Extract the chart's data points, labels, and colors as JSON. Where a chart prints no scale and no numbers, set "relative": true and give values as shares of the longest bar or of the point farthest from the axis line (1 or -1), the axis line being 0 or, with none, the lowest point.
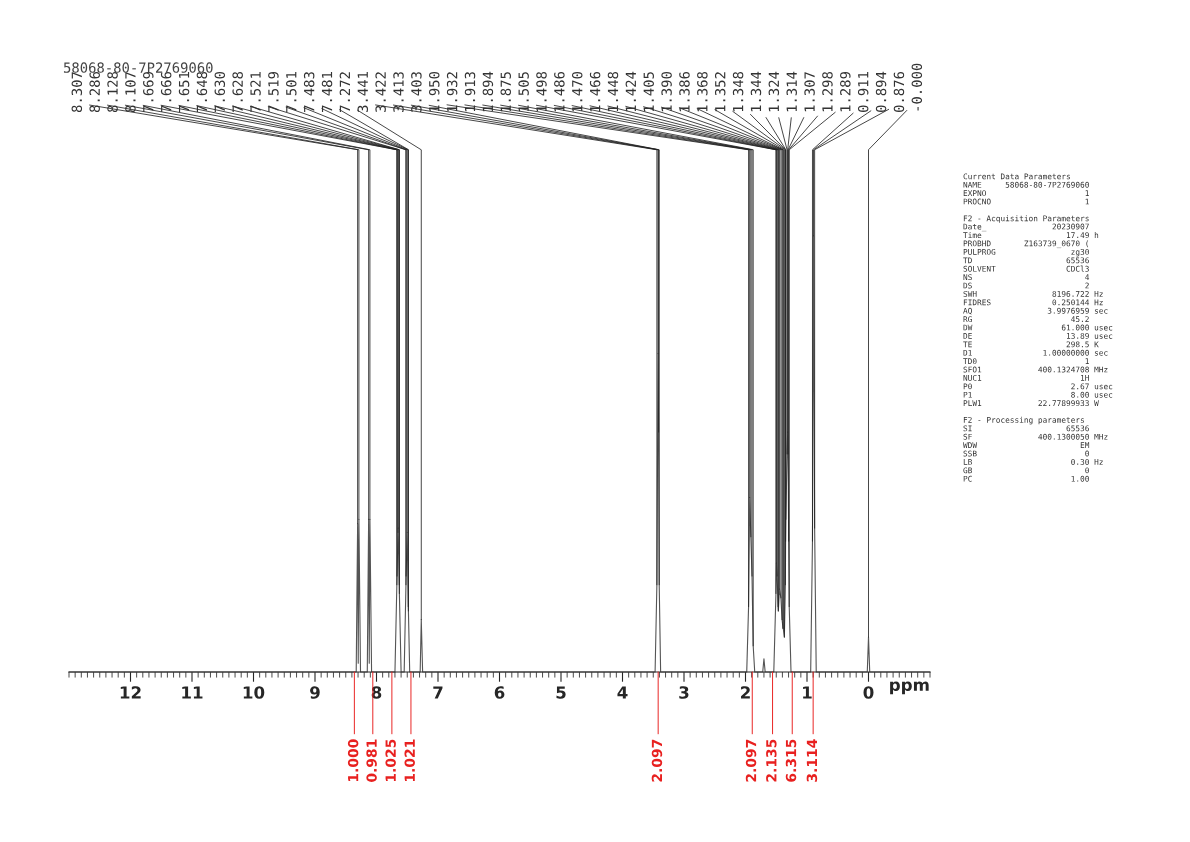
{
  "chart_data": {
    "type": "line",
    "title": "58068-80-7P2769060",
    "xlabel": "ppm",
    "relative": true,
    "xlim": [
      13,
      -1
    ],
    "xticks": [
      0,
      1,
      2,
      3,
      4,
      5,
      6,
      7,
      8,
      9,
      10,
      11,
      12
    ],
    "series": [
      {
        "color": "#555555",
        "x": [
          13,
          8.33,
          8.307,
          8.297,
          8.286,
          8.26,
          8.15,
          8.128,
          8.118,
          8.107,
          8.08,
          7.7,
          7.669,
          7.666,
          7.651,
          7.648,
          7.63,
          7.628,
          7.6,
          7.55,
          7.521,
          7.519,
          7.501,
          7.483,
          7.481,
          7.46,
          7.29,
          7.272,
          7.25,
          3.47,
          3.441,
          3.422,
          3.413,
          3.403,
          3.38,
          1.98,
          1.95,
          1.932,
          1.913,
          1.894,
          1.875,
          1.85,
          1.72,
          1.7,
          1.68,
          1.54,
          1.505,
          1.498,
          1.486,
          1.47,
          1.466,
          1.448,
          1.424,
          1.405,
          1.39,
          1.386,
          1.368,
          1.352,
          1.348,
          1.344,
          1.324,
          1.314,
          1.307,
          1.298,
          1.289,
          1.26,
          0.94,
          0.911,
          0.894,
          0.876,
          0.85,
          0.02,
          0.0,
          -0.02,
          -1
        ],
        "values": [
          0,
          0,
          0.34,
          0.02,
          0.35,
          0,
          0,
          0.35,
          0.02,
          0.35,
          0,
          0,
          0.2,
          0.22,
          0.32,
          0.33,
          0.2,
          0.18,
          0,
          0,
          0.2,
          0.22,
          0.32,
          0.15,
          0.14,
          0,
          0,
          0.12,
          0,
          0,
          0.2,
          0.73,
          0.55,
          0.2,
          0,
          0,
          0.15,
          0.4,
          0.31,
          0.22,
          0.06,
          0,
          0,
          0.03,
          0,
          0,
          0.18,
          0.25,
          0.22,
          0.15,
          0.14,
          0.19,
          0.17,
          0.12,
          0.1,
          0.1,
          0.08,
          0.2,
          0.3,
          0.35,
          0.5,
          0.55,
          0.5,
          0.3,
          0.15,
          0,
          0,
          0.3,
          1.0,
          0.33,
          0,
          0,
          0.08,
          0,
          0
        ]
      }
    ],
    "annotations": [
      {
        "text": "8.307",
        "x": 8.307,
        "y": 0.34
      },
      {
        "text": "8.286",
        "x": 8.286,
        "y": 0.35
      },
      {
        "text": "8.128",
        "x": 8.128,
        "y": 0.35
      },
      {
        "text": "8.107",
        "x": 8.107,
        "y": 0.35
      },
      {
        "text": "7.669",
        "x": 7.669,
        "y": 0.2
      },
      {
        "text": "7.666",
        "x": 7.666,
        "y": 0.22
      },
      {
        "text": "7.651",
        "x": 7.651,
        "y": 0.32
      },
      {
        "text": "7.648",
        "x": 7.648,
        "y": 0.33
      },
      {
        "text": "7.630",
        "x": 7.63,
        "y": 0.2
      },
      {
        "text": "7.628",
        "x": 7.628,
        "y": 0.18
      },
      {
        "text": "7.521",
        "x": 7.521,
        "y": 0.2
      },
      {
        "text": "7.519",
        "x": 7.519,
        "y": 0.22
      },
      {
        "text": "7.501",
        "x": 7.501,
        "y": 0.32
      },
      {
        "text": "7.483",
        "x": 7.483,
        "y": 0.15
      },
      {
        "text": "7.481",
        "x": 7.481,
        "y": 0.14
      },
      {
        "text": "7.272",
        "x": 7.272,
        "y": 0.12
      },
      {
        "text": "3.441",
        "x": 3.441,
        "y": 0.2
      },
      {
        "text": "3.422",
        "x": 3.422,
        "y": 0.73
      },
      {
        "text": "3.413",
        "x": 3.413,
        "y": 0.55
      },
      {
        "text": "3.403",
        "x": 3.403,
        "y": 0.2
      },
      {
        "text": "1.950",
        "x": 1.95,
        "y": 0.15
      },
      {
        "text": "1.932",
        "x": 1.932,
        "y": 0.4
      },
      {
        "text": "1.913",
        "x": 1.913,
        "y": 0.31
      },
      {
        "text": "1.894",
        "x": 1.894,
        "y": 0.22
      },
      {
        "text": "1.875",
        "x": 1.875,
        "y": 0.06
      },
      {
        "text": "1.505",
        "x": 1.505,
        "y": 0.18
      },
      {
        "text": "1.498",
        "x": 1.498,
        "y": 0.25
      },
      {
        "text": "1.486",
        "x": 1.486,
        "y": 0.22
      },
      {
        "text": "1.470",
        "x": 1.47,
        "y": 0.15
      },
      {
        "text": "1.466",
        "x": 1.466,
        "y": 0.14
      },
      {
        "text": "1.448",
        "x": 1.448,
        "y": 0.19
      },
      {
        "text": "1.424",
        "x": 1.424,
        "y": 0.17
      },
      {
        "text": "1.405",
        "x": 1.405,
        "y": 0.12
      },
      {
        "text": "1.390",
        "x": 1.39,
        "y": 0.1
      },
      {
        "text": "1.386",
        "x": 1.386,
        "y": 0.1
      },
      {
        "text": "1.368",
        "x": 1.368,
        "y": 0.08
      },
      {
        "text": "1.352",
        "x": 1.352,
        "y": 0.2
      },
      {
        "text": "1.348",
        "x": 1.348,
        "y": 0.3
      },
      {
        "text": "1.344",
        "x": 1.344,
        "y": 0.35
      },
      {
        "text": "1.324",
        "x": 1.324,
        "y": 0.5
      },
      {
        "text": "1.314",
        "x": 1.314,
        "y": 0.55
      },
      {
        "text": "1.307",
        "x": 1.307,
        "y": 0.5
      },
      {
        "text": "1.298",
        "x": 1.298,
        "y": 0.3
      },
      {
        "text": "1.289",
        "x": 1.289,
        "y": 0.15
      },
      {
        "text": "0.911",
        "x": 0.911,
        "y": 0.3
      },
      {
        "text": "0.894",
        "x": 0.894,
        "y": 1.0
      },
      {
        "text": "0.876",
        "x": 0.876,
        "y": 0.33
      },
      {
        "text": "-0.000",
        "x": 0.0,
        "y": 0.08
      },
      {
        "text": "1.000",
        "x": 8.36,
        "y": 0
      },
      {
        "text": "0.981",
        "x": 8.06,
        "y": 0
      },
      {
        "text": "1.025",
        "x": 7.75,
        "y": 0
      },
      {
        "text": "1.021",
        "x": 7.44,
        "y": 0
      },
      {
        "text": "2.097",
        "x": 3.42,
        "y": 0
      },
      {
        "text": "2.097",
        "x": 1.89,
        "y": 0
      },
      {
        "text": "2.135",
        "x": 1.56,
        "y": 0
      },
      {
        "text": "6.315",
        "x": 1.24,
        "y": 0
      },
      {
        "text": "3.114",
        "x": 0.9,
        "y": 0
      },
      "Current Data Parameters",
      "NAME\t58068-80-7P2769060",
      "EXPNO\t1",
      "PROCNO\t1",
      "F2 - Acquisition Parameters",
      "Date_\t20230907",
      "Time\t17.49\th",
      "PROBHD\tZ163739_0670 (",
      "PULPROG\tzg30",
      "TD\t65536",
      "SOLVENT\tCDCl3",
      "NS\t4",
      "DS\t2",
      "SWH\t8196.722\tHz",
      "FIDRES\t0.250144\tHz",
      "AQ\t3.9976959\tsec",
      "RG\t45.2",
      "DW\t61.000\tusec",
      "DE\t13.89\tusec",
      "TE\t298.5\tK",
      "D1\t1.00000000\tsec",
      "TD0\t1",
      "SFO1\t400.1324708\tMHz",
      "NUC1\t1H",
      "P0\t2.67\tusec",
      "P1\t8.00\tusec",
      "PLW1\t22.77899933\tW",
      "F2 - Processing parameters",
      "SI\t65536",
      "SF\t400.1300050\tMHz",
      "WDW\tEM",
      "SSB\t0",
      "LB\t0.30\tHz",
      "GB\t0",
      "PC\t1.00"
    ]
  }
}
